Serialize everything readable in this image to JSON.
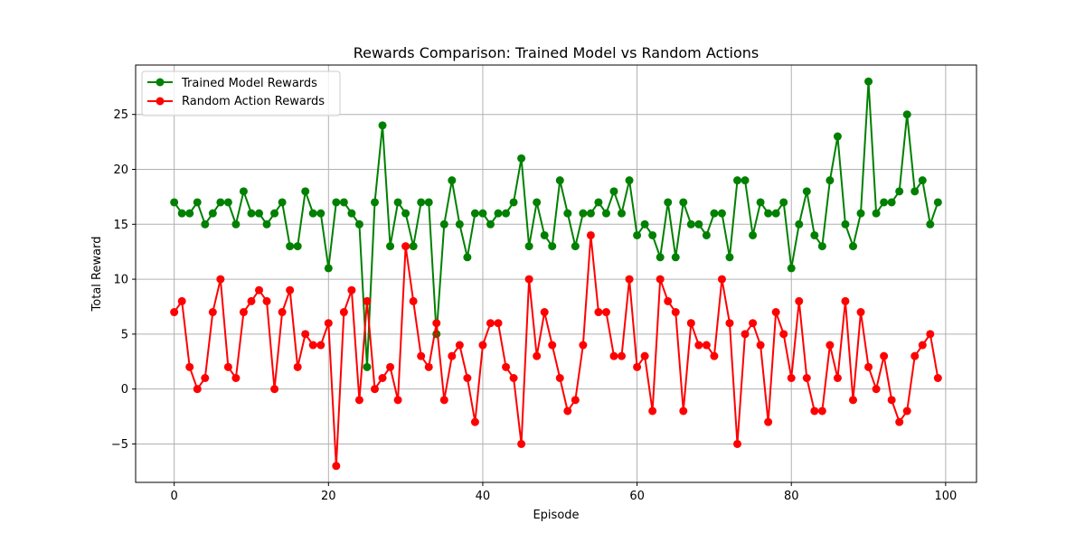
{
  "chart_data": {
    "type": "line",
    "title": "Rewards Comparison: Trained Model vs Random Actions",
    "xlabel": "Episode",
    "ylabel": "Total Reward",
    "xlim": [
      -5,
      104
    ],
    "ylim": [
      -8.5,
      29.5
    ],
    "xticks": [
      0,
      20,
      40,
      60,
      80,
      100
    ],
    "yticks": [
      -5,
      0,
      5,
      10,
      15,
      20,
      25
    ],
    "grid": true,
    "legend_position": "top-left",
    "x": [
      0,
      1,
      2,
      3,
      4,
      5,
      6,
      7,
      8,
      9,
      10,
      11,
      12,
      13,
      14,
      15,
      16,
      17,
      18,
      19,
      20,
      21,
      22,
      23,
      24,
      25,
      26,
      27,
      28,
      29,
      30,
      31,
      32,
      33,
      34,
      35,
      36,
      37,
      38,
      39,
      40,
      41,
      42,
      43,
      44,
      45,
      46,
      47,
      48,
      49,
      50,
      51,
      52,
      53,
      54,
      55,
      56,
      57,
      58,
      59,
      60,
      61,
      62,
      63,
      64,
      65,
      66,
      67,
      68,
      69,
      70,
      71,
      72,
      73,
      74,
      75,
      76,
      77,
      78,
      79,
      80,
      81,
      82,
      83,
      84,
      85,
      86,
      87,
      88,
      89,
      90,
      91,
      92,
      93,
      94,
      95,
      96,
      97,
      98,
      99
    ],
    "series": [
      {
        "name": "Trained Model Rewards",
        "color": "#008000",
        "marker": "circle",
        "values": [
          17,
          16,
          16,
          17,
          15,
          16,
          17,
          17,
          15,
          18,
          16,
          16,
          15,
          16,
          17,
          13,
          13,
          18,
          16,
          16,
          11,
          17,
          17,
          16,
          15,
          2,
          17,
          24,
          13,
          17,
          16,
          13,
          17,
          17,
          5,
          15,
          19,
          15,
          12,
          16,
          16,
          15,
          16,
          16,
          17,
          21,
          13,
          17,
          14,
          13,
          19,
          16,
          13,
          16,
          16,
          17,
          16,
          18,
          16,
          19,
          14,
          15,
          14,
          12,
          17,
          12,
          17,
          15,
          15,
          14,
          16,
          16,
          12,
          19,
          19,
          14,
          17,
          16,
          16,
          17,
          11,
          15,
          18,
          14,
          13,
          19,
          23,
          15,
          13,
          16,
          28,
          16,
          17,
          17,
          18,
          25,
          18,
          19,
          15,
          17
        ]
      },
      {
        "name": "Random Action Rewards",
        "color": "#ff0000",
        "marker": "circle",
        "values": [
          7,
          8,
          2,
          0,
          1,
          7,
          10,
          2,
          1,
          7,
          8,
          9,
          8,
          0,
          7,
          9,
          2,
          5,
          4,
          4,
          6,
          -7,
          7,
          9,
          -1,
          8,
          0,
          1,
          2,
          -1,
          13,
          8,
          3,
          2,
          6,
          -1,
          3,
          4,
          1,
          -3,
          4,
          6,
          6,
          2,
          1,
          -5,
          10,
          3,
          7,
          4,
          1,
          -2,
          -1,
          4,
          14,
          7,
          7,
          3,
          3,
          10,
          2,
          3,
          -2,
          10,
          8,
          7,
          -2,
          6,
          4,
          4,
          3,
          10,
          6,
          -5,
          5,
          6,
          4,
          -3,
          7,
          5,
          1,
          8,
          1,
          -2,
          -2,
          4,
          1,
          8,
          -1,
          7,
          2,
          0,
          3,
          -1,
          -3,
          -2,
          3,
          4,
          5,
          1
        ]
      }
    ]
  }
}
